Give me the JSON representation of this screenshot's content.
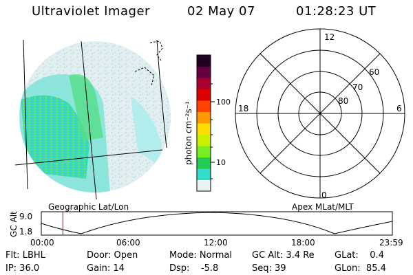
{
  "header": {
    "instrument": "Ultraviolet Imager",
    "date": "02 May 07",
    "time": "01:28:23 UT"
  },
  "colorbar": {
    "unit_label": "photon cm⁻²s⁻¹",
    "ticks": [
      "100",
      "10"
    ],
    "stops": [
      "#e8f4f4",
      "#33ddcc",
      "#22cc55",
      "#77ee22",
      "#ccee00",
      "#ffdd00",
      "#ff9900",
      "#ff4400",
      "#dd0000",
      "#aa0030",
      "#660040",
      "#220022"
    ]
  },
  "polar": {
    "hour_labels": {
      "top": "12",
      "left": "18",
      "right": "6",
      "bottom": "0"
    },
    "lat_labels": [
      "60",
      "70",
      "80"
    ]
  },
  "timeline": {
    "left_label": "Geographic Lat/Lon",
    "right_label": "Apex MLat/MLT",
    "axis_title": "GC Alt",
    "y_ticks": [
      "9.0",
      "1.8"
    ],
    "x_ticks": [
      "00:00",
      "06:00",
      "12:00",
      "18:00",
      "23:59"
    ],
    "current_time_fraction": 0.0613
  },
  "footer": {
    "flt": "Flt: LBHL",
    "ip": "IP: 36.0",
    "door": "Door: Open",
    "gain": "Gain: 14",
    "mode": "Mode: Normal",
    "dsp": "Dsp:    -5.8",
    "gc_alt": "GC Alt: 3.4 Re",
    "seq": "Seq: 39",
    "glat": "GLat:    0.4",
    "glon": "GLon:  85.4"
  }
}
